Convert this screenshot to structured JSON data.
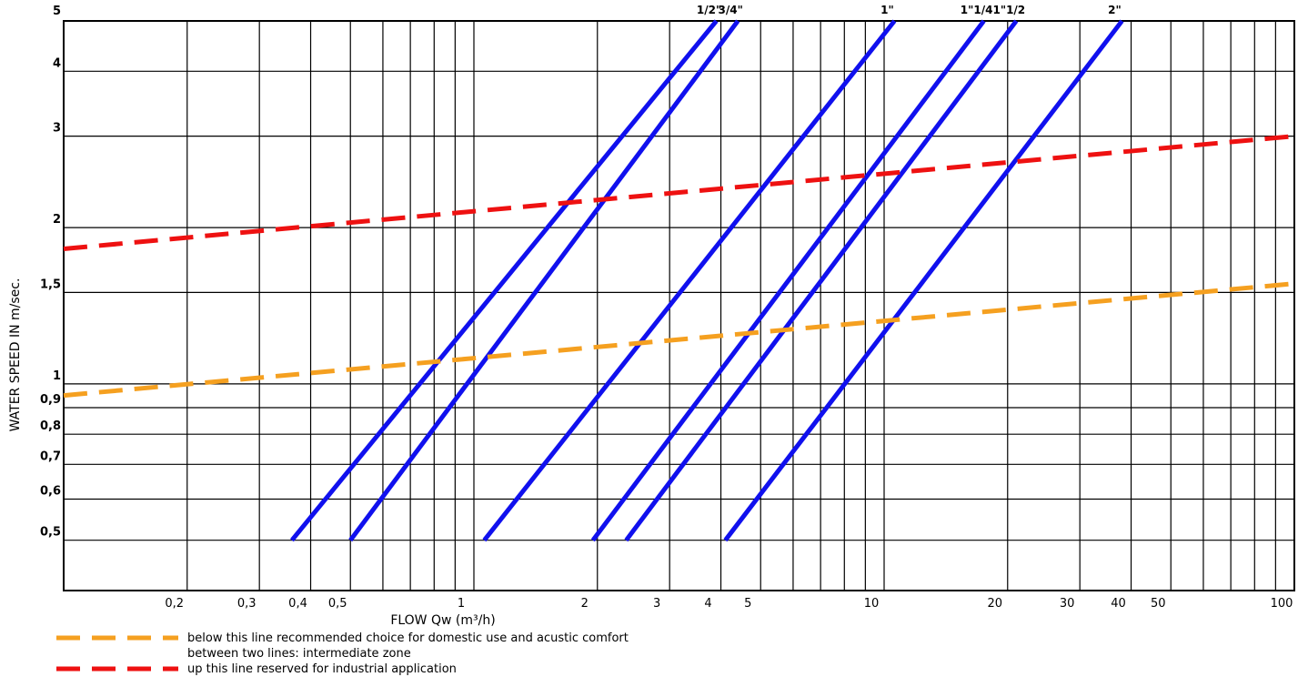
{
  "chart_data": {
    "type": "line",
    "xlabel": "FLOW Qw (m³/h)",
    "ylabel": "WATER SPEED IN m/sec.",
    "x_scale": "log",
    "y_scale": "log",
    "xlim": [
      0.1,
      100
    ],
    "ylim": [
      0.4,
      5
    ],
    "grid": true,
    "x_tick_values": [
      0.2,
      0.3,
      0.4,
      0.5,
      1,
      2,
      3,
      4,
      5,
      10,
      20,
      30,
      40,
      50,
      100
    ],
    "x_tick_labels": [
      "0,2",
      "0,3",
      "0,4",
      "0,5",
      "1",
      "2",
      "3",
      "4",
      "5",
      "10",
      "20",
      "30",
      "40",
      "50",
      "100"
    ],
    "x_minor_grid": [
      0.6,
      0.7,
      0.8,
      0.9,
      6,
      7,
      8,
      9,
      60,
      70,
      80,
      90
    ],
    "y_tick_values": [
      0.5,
      0.6,
      0.7,
      0.8,
      0.9,
      1,
      1.5,
      2,
      3,
      4,
      5
    ],
    "y_tick_labels": [
      "0,5",
      "0,6",
      "0,7",
      "0,8",
      "0,9",
      "1",
      "1,5",
      "2",
      "3",
      "4",
      "5"
    ],
    "series": [
      {
        "name": "1/2\"",
        "color": "#1010ee",
        "dashed": false,
        "x": [
          0.36,
          3.9
        ],
        "y": [
          0.5,
          5
        ]
      },
      {
        "name": "3/4\"",
        "color": "#1010ee",
        "dashed": false,
        "x": [
          0.5,
          4.4
        ],
        "y": [
          0.5,
          5
        ]
      },
      {
        "name": "1\"",
        "color": "#1010ee",
        "dashed": false,
        "x": [
          1.06,
          10.6
        ],
        "y": [
          0.5,
          5
        ]
      },
      {
        "name": "1\"1/4",
        "color": "#1010ee",
        "dashed": false,
        "x": [
          1.95,
          17.5
        ],
        "y": [
          0.5,
          5
        ]
      },
      {
        "name": "1\"1/2",
        "color": "#1010ee",
        "dashed": false,
        "x": [
          2.35,
          21
        ],
        "y": [
          0.5,
          5
        ]
      },
      {
        "name": "2\"",
        "color": "#1010ee",
        "dashed": false,
        "x": [
          4.1,
          38
        ],
        "y": [
          0.5,
          5
        ]
      },
      {
        "color": "#ee1111",
        "dashed": true,
        "x": [
          0.1,
          100
        ],
        "y": [
          1.82,
          3.0
        ]
      },
      {
        "color": "#f5a020",
        "dashed": true,
        "x": [
          0.1,
          100
        ],
        "y": [
          0.95,
          1.56
        ]
      }
    ],
    "legend": [
      {
        "color": "#f5a020",
        "text": "below this line recommended choice for domestic use and acustic comfort"
      },
      {
        "color": "",
        "text": "between two lines: intermediate zone"
      },
      {
        "color": "#ee1111",
        "text": "up this line reserved for industrial application"
      }
    ]
  }
}
